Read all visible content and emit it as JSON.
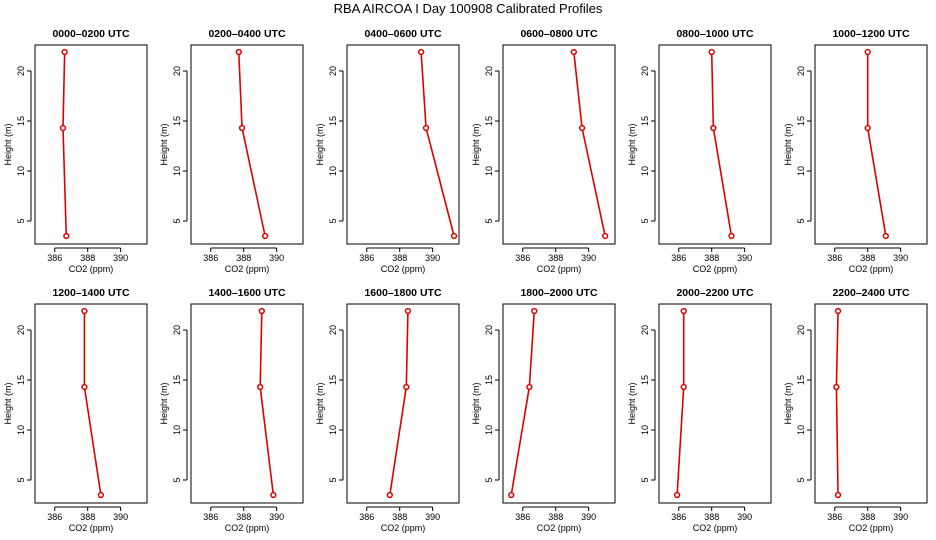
{
  "chart_data": {
    "type": "line",
    "title": "RBA AIRCOA I  Day 100908  Calibrated Profiles",
    "xlabel": "CO2 (ppm)",
    "ylabel": "Height (m)",
    "xlim": [
      384.8,
      391.6
    ],
    "ylim": [
      2.7,
      22.6
    ],
    "xticks": [
      386,
      388,
      390
    ],
    "yticks": [
      5,
      10,
      15,
      20
    ],
    "heights": [
      3.5,
      14.3,
      21.9
    ],
    "series_color": "#dd0000",
    "panels": [
      {
        "title": "0000–0200 UTC",
        "values": [
          386.7,
          386.5,
          386.6
        ]
      },
      {
        "title": "0200–0400 UTC",
        "values": [
          389.3,
          387.9,
          387.7
        ]
      },
      {
        "title": "0400–0600 UTC",
        "values": [
          391.3,
          389.6,
          389.3
        ]
      },
      {
        "title": "0600–0800 UTC",
        "values": [
          391.0,
          389.6,
          389.1
        ]
      },
      {
        "title": "0800–1000 UTC",
        "values": [
          389.2,
          388.1,
          388.0
        ]
      },
      {
        "title": "1000–1200 UTC",
        "values": [
          389.1,
          388.0,
          388.0
        ]
      },
      {
        "title": "1200–1400 UTC",
        "values": [
          388.8,
          387.8,
          387.8
        ]
      },
      {
        "title": "1400–1600 UTC",
        "values": [
          389.8,
          389.0,
          389.1
        ]
      },
      {
        "title": "1600–1800 UTC",
        "values": [
          387.4,
          388.4,
          388.5
        ]
      },
      {
        "title": "1800–2000 UTC",
        "values": [
          385.3,
          386.4,
          386.7
        ]
      },
      {
        "title": "2000–2200 UTC",
        "values": [
          385.9,
          386.3,
          386.3
        ]
      },
      {
        "title": "2200–2400 UTC",
        "values": [
          386.2,
          386.1,
          386.2
        ]
      }
    ]
  }
}
